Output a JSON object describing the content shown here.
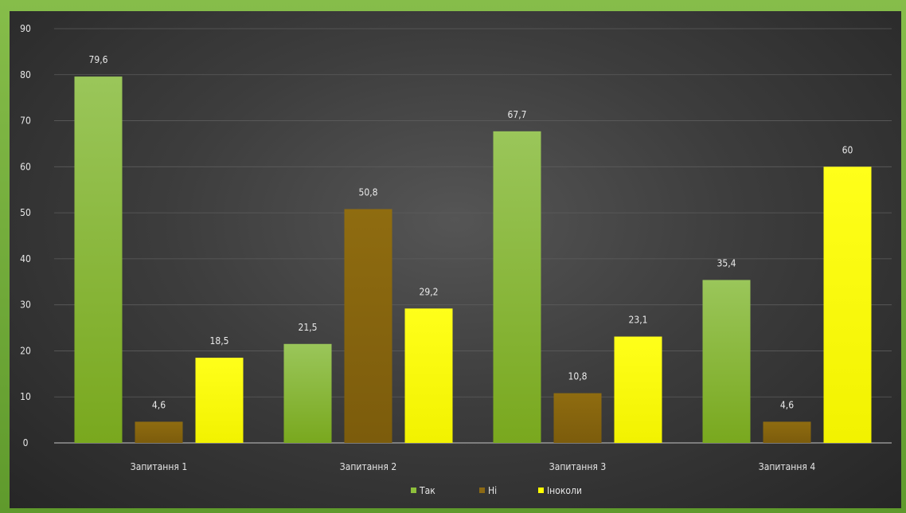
{
  "chart_data": {
    "type": "bar",
    "categories": [
      "Запитання  1",
      "Запитання  2",
      "Запитання  3",
      "Запитання  4"
    ],
    "series": [
      {
        "name": "Так",
        "values": [
          79.6,
          21.5,
          67.7,
          35.4
        ],
        "labels": [
          "79,6",
          "21,5",
          "67,7",
          "35,4"
        ]
      },
      {
        "name": "Ні",
        "values": [
          4.6,
          50.8,
          10.8,
          4.6
        ],
        "labels": [
          "4,6",
          "50,8",
          "10,8",
          "4,6"
        ]
      },
      {
        "name": "Іноколи",
        "values": [
          18.5,
          29.2,
          23.1,
          60
        ],
        "labels": [
          "18,5",
          "29,2",
          "23,1",
          "60"
        ]
      }
    ],
    "ylim": [
      0,
      90
    ],
    "yticks": [
      0,
      10,
      20,
      30,
      40,
      50,
      60,
      70,
      80,
      90
    ],
    "grid": true,
    "legend": "bottom",
    "colors": [
      "#8ec03c",
      "#8b6914",
      "#ffff00"
    ]
  }
}
